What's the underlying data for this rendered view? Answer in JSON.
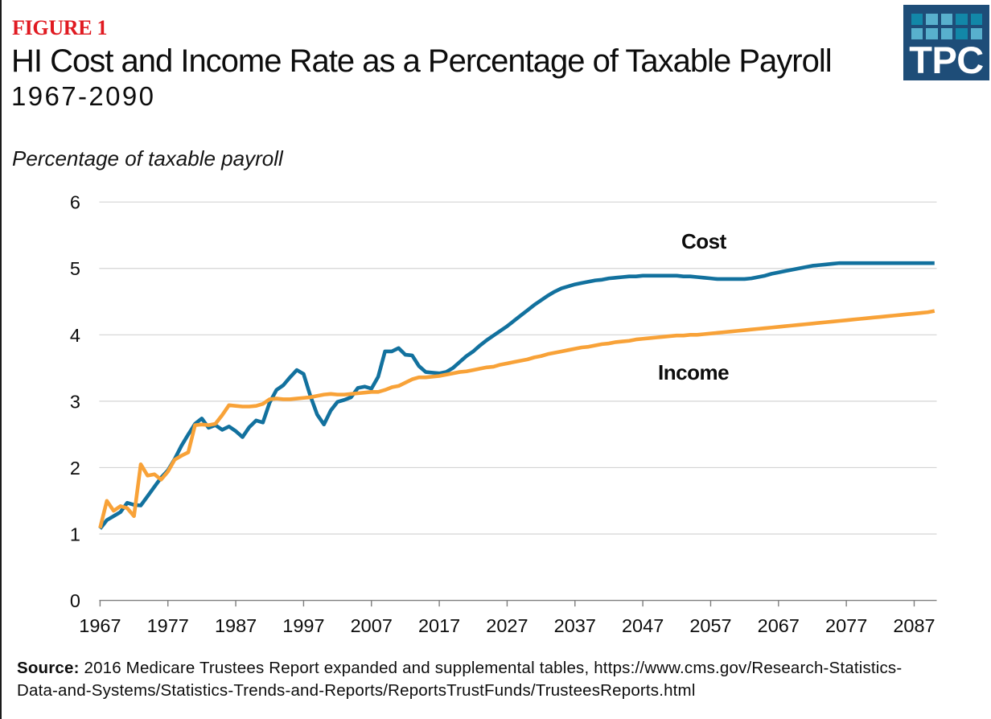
{
  "header": {
    "figure_label": "FIGURE 1",
    "title": "HI Cost and Income Rate as a Percentage of Taxable Payroll",
    "subtitle": "1967-2090"
  },
  "logo": {
    "text": "TPC",
    "background_color": "#1e4d78",
    "square_colors": {
      "dark": "#1287a8",
      "light": "#58b0cd"
    },
    "squares": [
      [
        "dark",
        "light",
        "light",
        "dark",
        "dark"
      ],
      [
        "light",
        "light",
        "light",
        "dark",
        "light"
      ]
    ]
  },
  "source": {
    "label": "Source:",
    "line1": "2016 Medicare Trustees Report expanded and supplemental tables, https://www.cms.gov/Research-Statistics-",
    "line2": "Data-and-Systems/Statistics-Trends-and-Reports/ReportsTrustFunds/TrusteesReports.html"
  },
  "chart_data": {
    "type": "line",
    "title": "HI Cost and Income Rate as a Percentage of Taxable Payroll",
    "xlabel": "",
    "ylabel": "Percentage of taxable payroll",
    "ylim": [
      0,
      6
    ],
    "xlim": [
      1967,
      2090
    ],
    "yticks": [
      0,
      1,
      2,
      3,
      4,
      5,
      6
    ],
    "xticks": [
      1967,
      1977,
      1987,
      1997,
      2007,
      2017,
      2027,
      2037,
      2047,
      2057,
      2067,
      2077,
      2087
    ],
    "grid": "horizontal",
    "legend_position": "inline-labels",
    "start_year": 1967,
    "colors": {
      "cost": "#12719e",
      "income": "#f8a238"
    },
    "series": [
      {
        "name": "Cost",
        "values": [
          1.08,
          1.21,
          1.27,
          1.33,
          1.47,
          1.44,
          1.43,
          1.57,
          1.71,
          1.85,
          1.96,
          2.13,
          2.33,
          2.5,
          2.66,
          2.74,
          2.6,
          2.64,
          2.57,
          2.62,
          2.55,
          2.46,
          2.61,
          2.71,
          2.68,
          2.98,
          3.17,
          3.24,
          3.36,
          3.47,
          3.41,
          3.08,
          2.8,
          2.65,
          2.86,
          2.99,
          3.02,
          3.06,
          3.2,
          3.22,
          3.19,
          3.37,
          3.75,
          3.75,
          3.8,
          3.7,
          3.69,
          3.53,
          3.44,
          3.43,
          3.42,
          3.44,
          3.5,
          3.59,
          3.68,
          3.75,
          3.84,
          3.92,
          3.99,
          4.06,
          4.13,
          4.21,
          4.29,
          4.37,
          4.45,
          4.52,
          4.59,
          4.65,
          4.7,
          4.73,
          4.76,
          4.78,
          4.8,
          4.82,
          4.83,
          4.85,
          4.86,
          4.87,
          4.88,
          4.88,
          4.89,
          4.89,
          4.89,
          4.89,
          4.89,
          4.89,
          4.88,
          4.88,
          4.87,
          4.86,
          4.85,
          4.84,
          4.84,
          4.84,
          4.84,
          4.84,
          4.85,
          4.87,
          4.89,
          4.92,
          4.94,
          4.96,
          4.98,
          5.0,
          5.02,
          5.04,
          5.05,
          5.06,
          5.07,
          5.08,
          5.08,
          5.08,
          5.08,
          5.08,
          5.08,
          5.08,
          5.08,
          5.08,
          5.08,
          5.08,
          5.08,
          5.08,
          5.08,
          5.08
        ]
      },
      {
        "name": "Income",
        "values": [
          1.09,
          1.5,
          1.35,
          1.42,
          1.39,
          1.27,
          2.05,
          1.88,
          1.9,
          1.82,
          1.94,
          2.12,
          2.18,
          2.23,
          2.64,
          2.65,
          2.64,
          2.66,
          2.79,
          2.94,
          2.93,
          2.92,
          2.92,
          2.93,
          2.96,
          3.03,
          3.04,
          3.03,
          3.03,
          3.04,
          3.05,
          3.06,
          3.08,
          3.1,
          3.11,
          3.1,
          3.1,
          3.11,
          3.12,
          3.13,
          3.14,
          3.14,
          3.17,
          3.21,
          3.23,
          3.28,
          3.33,
          3.36,
          3.36,
          3.37,
          3.38,
          3.4,
          3.42,
          3.44,
          3.45,
          3.47,
          3.49,
          3.51,
          3.52,
          3.55,
          3.57,
          3.59,
          3.61,
          3.63,
          3.66,
          3.68,
          3.71,
          3.73,
          3.75,
          3.77,
          3.79,
          3.81,
          3.82,
          3.84,
          3.86,
          3.87,
          3.89,
          3.9,
          3.91,
          3.93,
          3.94,
          3.95,
          3.96,
          3.97,
          3.98,
          3.99,
          3.99,
          4.0,
          4.0,
          4.01,
          4.02,
          4.03,
          4.04,
          4.05,
          4.06,
          4.07,
          4.08,
          4.09,
          4.1,
          4.11,
          4.12,
          4.13,
          4.14,
          4.15,
          4.16,
          4.17,
          4.18,
          4.19,
          4.2,
          4.21,
          4.22,
          4.23,
          4.24,
          4.25,
          4.26,
          4.27,
          4.28,
          4.29,
          4.3,
          4.31,
          4.32,
          4.33,
          4.34,
          4.36
        ]
      }
    ]
  }
}
